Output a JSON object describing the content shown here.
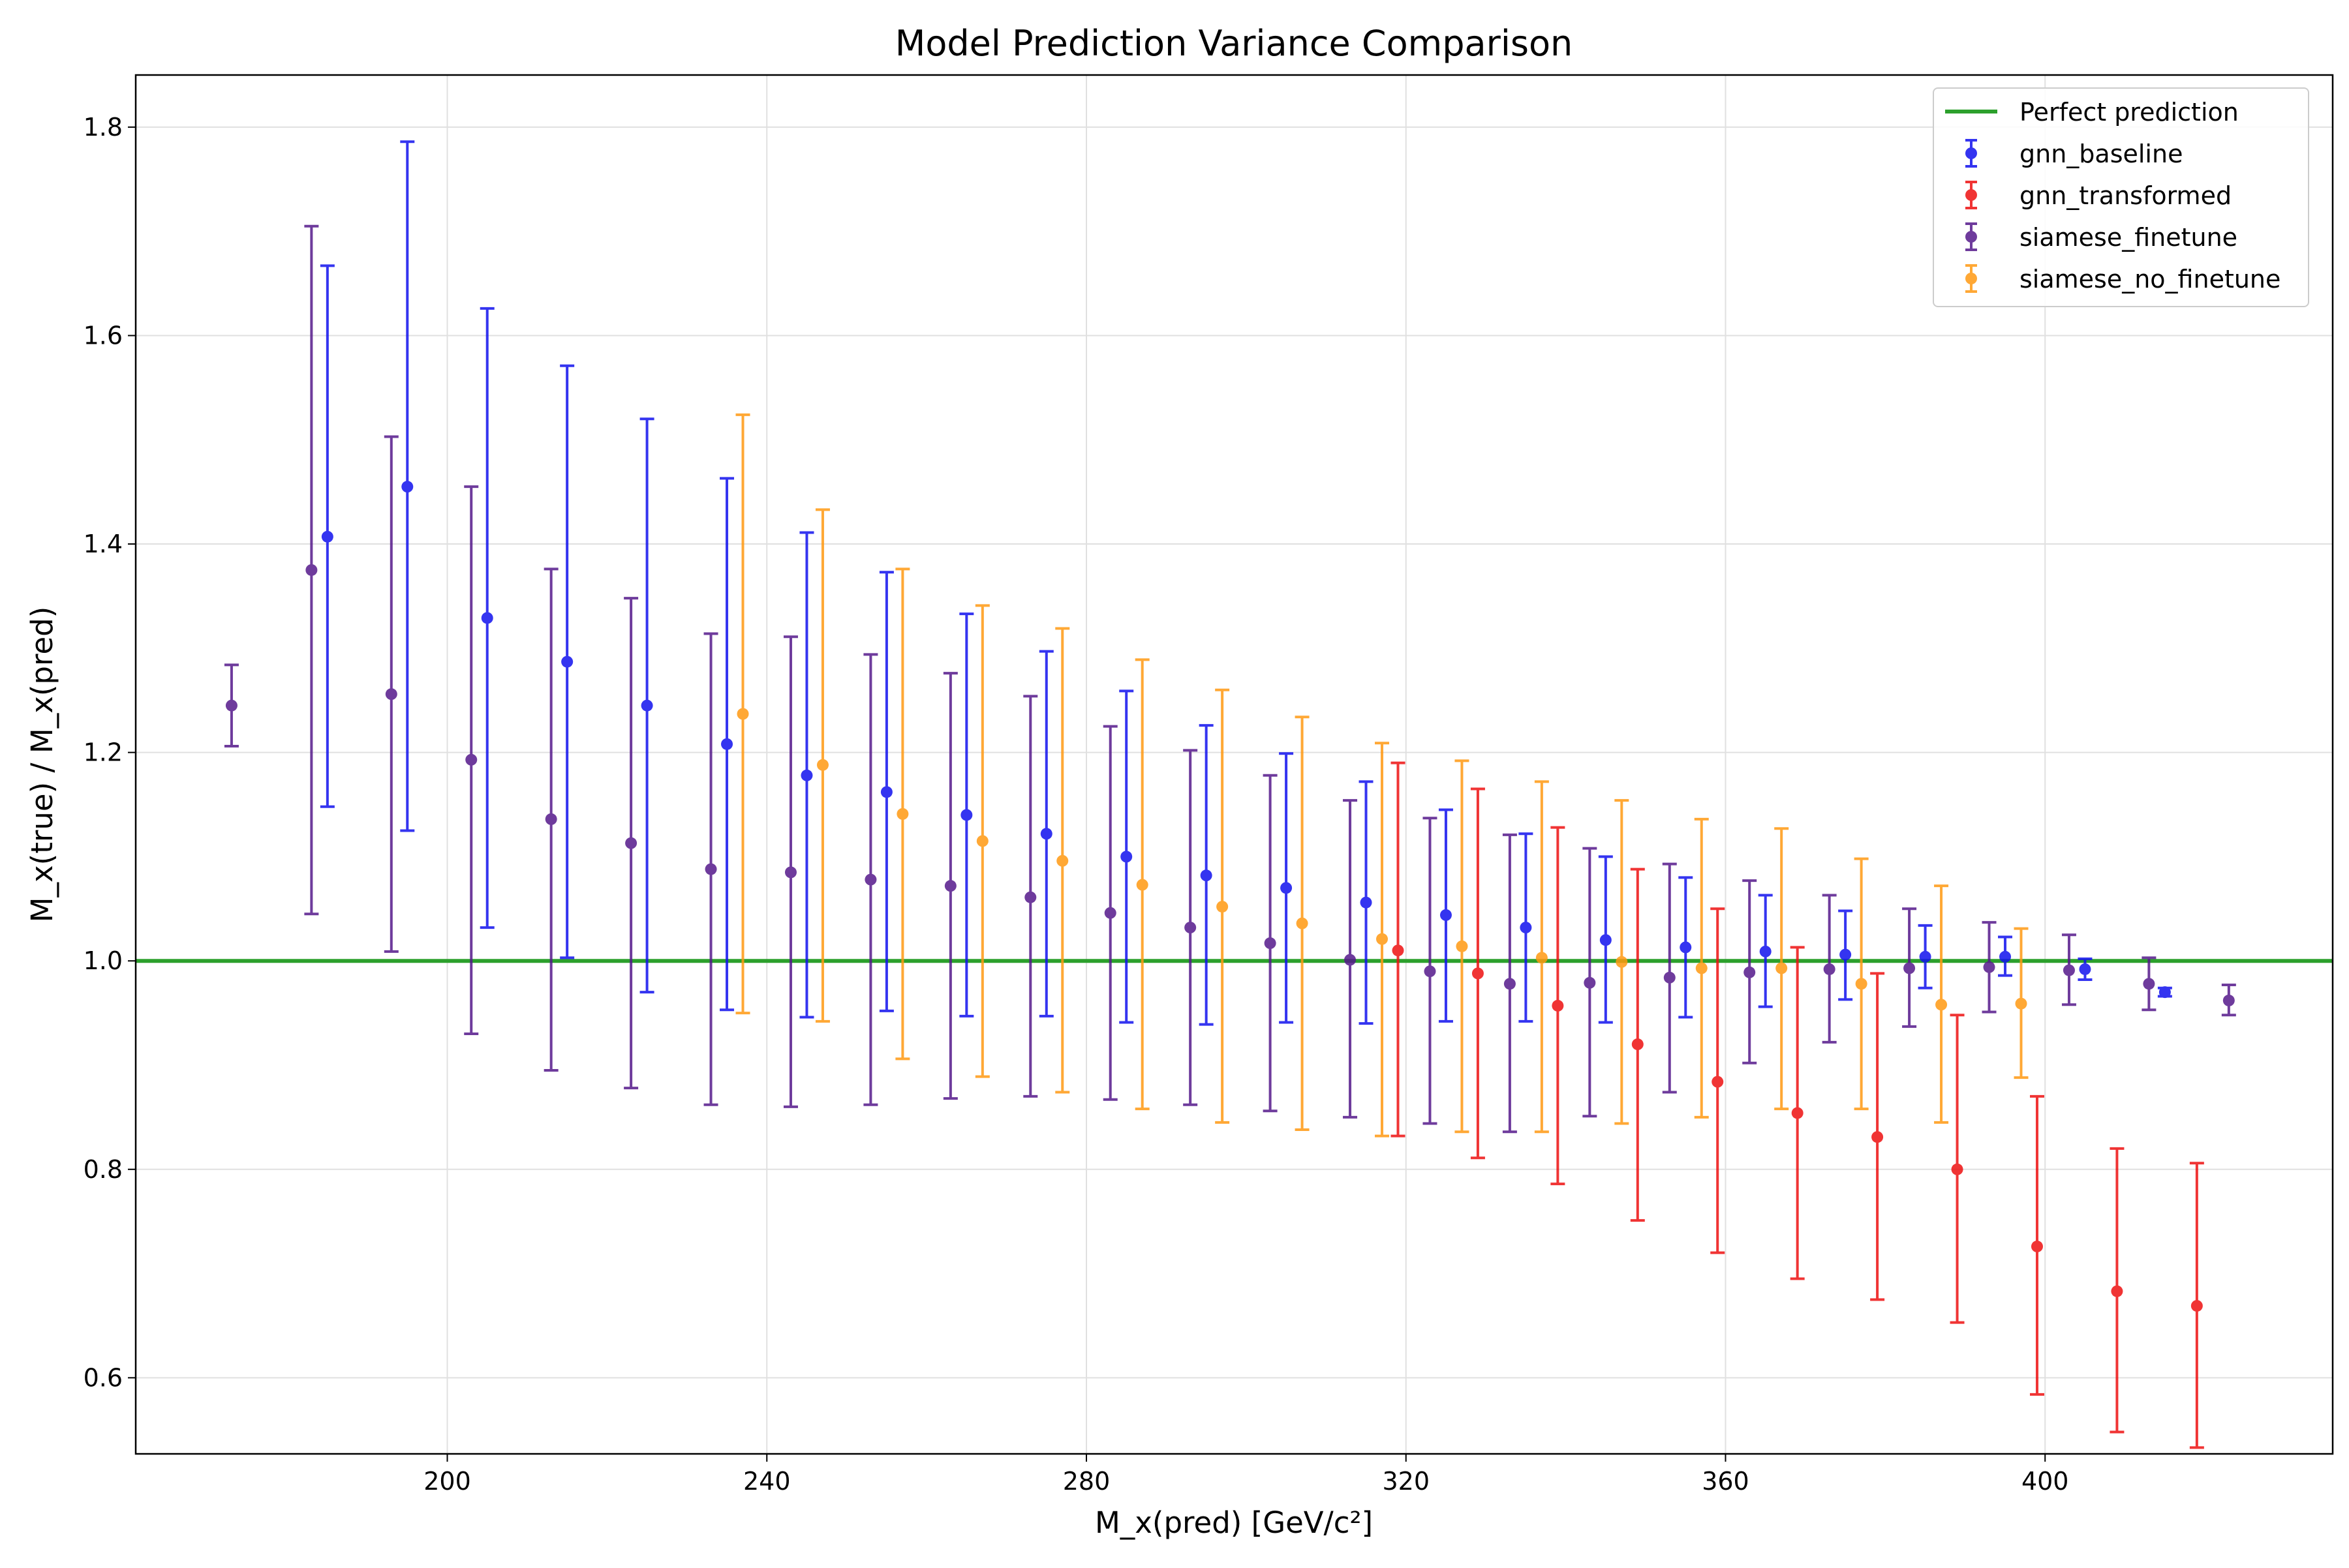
{
  "chart_data": {
    "type": "scatter",
    "title": "Model Prediction Variance Comparison",
    "xlabel": "M_x(pred) [GeV/c²]",
    "ylabel": "M_x(true) / M_x(pred)",
    "xlim": [
      161,
      436
    ],
    "ylim": [
      0.527,
      1.85
    ],
    "x_ticks": [
      200,
      240,
      280,
      320,
      360,
      400
    ],
    "y_ticks": [
      0.6,
      0.8,
      1.0,
      1.2,
      1.4,
      1.6,
      1.8
    ],
    "x_tick_labels": [
      "200",
      "240",
      "280",
      "320",
      "360",
      "400"
    ],
    "y_tick_labels": [
      "0.6",
      "0.8",
      "1.0",
      "1.2",
      "1.4",
      "1.6",
      "1.8"
    ],
    "grid": true,
    "legend_position": "top-right",
    "reference_line": {
      "name": "Perfect prediction",
      "y": 1.0,
      "color": "#2ca02c"
    },
    "series": [
      {
        "name": "gnn_baseline",
        "color": "#1111ee",
        "points": [
          {
            "x": 185,
            "y": 1.407,
            "lo": 1.148,
            "hi": 1.667
          },
          {
            "x": 195,
            "y": 1.455,
            "lo": 1.125,
            "hi": 1.786
          },
          {
            "x": 205,
            "y": 1.329,
            "lo": 1.032,
            "hi": 1.626
          },
          {
            "x": 215,
            "y": 1.287,
            "lo": 1.003,
            "hi": 1.571
          },
          {
            "x": 225,
            "y": 1.245,
            "lo": 0.97,
            "hi": 1.52
          },
          {
            "x": 235,
            "y": 1.208,
            "lo": 0.953,
            "hi": 1.463
          },
          {
            "x": 245,
            "y": 1.178,
            "lo": 0.946,
            "hi": 1.411
          },
          {
            "x": 255,
            "y": 1.162,
            "lo": 0.952,
            "hi": 1.373
          },
          {
            "x": 265,
            "y": 1.14,
            "lo": 0.947,
            "hi": 1.333
          },
          {
            "x": 275,
            "y": 1.122,
            "lo": 0.947,
            "hi": 1.297
          },
          {
            "x": 285,
            "y": 1.1,
            "lo": 0.941,
            "hi": 1.259
          },
          {
            "x": 295,
            "y": 1.082,
            "lo": 0.939,
            "hi": 1.226
          },
          {
            "x": 305,
            "y": 1.07,
            "lo": 0.941,
            "hi": 1.199
          },
          {
            "x": 315,
            "y": 1.056,
            "lo": 0.94,
            "hi": 1.172
          },
          {
            "x": 325,
            "y": 1.044,
            "lo": 0.942,
            "hi": 1.145
          },
          {
            "x": 335,
            "y": 1.032,
            "lo": 0.942,
            "hi": 1.122
          },
          {
            "x": 345,
            "y": 1.02,
            "lo": 0.941,
            "hi": 1.1
          },
          {
            "x": 355,
            "y": 1.013,
            "lo": 0.946,
            "hi": 1.08
          },
          {
            "x": 365,
            "y": 1.009,
            "lo": 0.956,
            "hi": 1.063
          },
          {
            "x": 375,
            "y": 1.006,
            "lo": 0.963,
            "hi": 1.048
          },
          {
            "x": 385,
            "y": 1.004,
            "lo": 0.974,
            "hi": 1.034
          },
          {
            "x": 395,
            "y": 1.004,
            "lo": 0.986,
            "hi": 1.023
          },
          {
            "x": 405,
            "y": 0.992,
            "lo": 0.982,
            "hi": 1.002
          },
          {
            "x": 415,
            "y": 0.97,
            "lo": 0.966,
            "hi": 0.974
          }
        ]
      },
      {
        "name": "gnn_transformed",
        "color": "#ee1111",
        "points": [
          {
            "x": 319,
            "y": 1.01,
            "lo": 0.832,
            "hi": 1.19
          },
          {
            "x": 329,
            "y": 0.988,
            "lo": 0.811,
            "hi": 1.165
          },
          {
            "x": 339,
            "y": 0.957,
            "lo": 0.786,
            "hi": 1.128
          },
          {
            "x": 349,
            "y": 0.92,
            "lo": 0.751,
            "hi": 1.088
          },
          {
            "x": 359,
            "y": 0.884,
            "lo": 0.72,
            "hi": 1.05
          },
          {
            "x": 369,
            "y": 0.854,
            "lo": 0.695,
            "hi": 1.013
          },
          {
            "x": 379,
            "y": 0.831,
            "lo": 0.675,
            "hi": 0.988
          },
          {
            "x": 389,
            "y": 0.8,
            "lo": 0.653,
            "hi": 0.948
          },
          {
            "x": 399,
            "y": 0.726,
            "lo": 0.584,
            "hi": 0.87
          },
          {
            "x": 409,
            "y": 0.683,
            "lo": 0.548,
            "hi": 0.82
          },
          {
            "x": 419,
            "y": 0.669,
            "lo": 0.533,
            "hi": 0.806
          }
        ]
      },
      {
        "name": "siamese_finetune",
        "color": "#551a8b",
        "points": [
          {
            "x": 173,
            "y": 1.245,
            "lo": 1.206,
            "hi": 1.284
          },
          {
            "x": 183,
            "y": 1.375,
            "lo": 1.045,
            "hi": 1.705
          },
          {
            "x": 193,
            "y": 1.256,
            "lo": 1.009,
            "hi": 1.503
          },
          {
            "x": 203,
            "y": 1.193,
            "lo": 0.93,
            "hi": 1.455
          },
          {
            "x": 213,
            "y": 1.136,
            "lo": 0.895,
            "hi": 1.376
          },
          {
            "x": 223,
            "y": 1.113,
            "lo": 0.878,
            "hi": 1.348
          },
          {
            "x": 233,
            "y": 1.088,
            "lo": 0.862,
            "hi": 1.314
          },
          {
            "x": 243,
            "y": 1.085,
            "lo": 0.86,
            "hi": 1.311
          },
          {
            "x": 253,
            "y": 1.078,
            "lo": 0.862,
            "hi": 1.294
          },
          {
            "x": 263,
            "y": 1.072,
            "lo": 0.868,
            "hi": 1.276
          },
          {
            "x": 273,
            "y": 1.061,
            "lo": 0.87,
            "hi": 1.254
          },
          {
            "x": 283,
            "y": 1.046,
            "lo": 0.867,
            "hi": 1.225
          },
          {
            "x": 293,
            "y": 1.032,
            "lo": 0.862,
            "hi": 1.202
          },
          {
            "x": 303,
            "y": 1.017,
            "lo": 0.856,
            "hi": 1.178
          },
          {
            "x": 313,
            "y": 1.001,
            "lo": 0.85,
            "hi": 1.154
          },
          {
            "x": 323,
            "y": 0.99,
            "lo": 0.844,
            "hi": 1.137
          },
          {
            "x": 333,
            "y": 0.978,
            "lo": 0.836,
            "hi": 1.121
          },
          {
            "x": 343,
            "y": 0.979,
            "lo": 0.851,
            "hi": 1.108
          },
          {
            "x": 353,
            "y": 0.984,
            "lo": 0.874,
            "hi": 1.093
          },
          {
            "x": 363,
            "y": 0.989,
            "lo": 0.902,
            "hi": 1.077
          },
          {
            "x": 373,
            "y": 0.992,
            "lo": 0.922,
            "hi": 1.063
          },
          {
            "x": 383,
            "y": 0.993,
            "lo": 0.937,
            "hi": 1.05
          },
          {
            "x": 393,
            "y": 0.994,
            "lo": 0.951,
            "hi": 1.037
          },
          {
            "x": 403,
            "y": 0.991,
            "lo": 0.958,
            "hi": 1.025
          },
          {
            "x": 413,
            "y": 0.978,
            "lo": 0.953,
            "hi": 1.003
          },
          {
            "x": 423,
            "y": 0.962,
            "lo": 0.948,
            "hi": 0.977
          }
        ]
      },
      {
        "name": "siamese_no_finetune",
        "color": "#ff9912",
        "points": [
          {
            "x": 237,
            "y": 1.237,
            "lo": 0.95,
            "hi": 1.524
          },
          {
            "x": 247,
            "y": 1.188,
            "lo": 0.942,
            "hi": 1.433
          },
          {
            "x": 257,
            "y": 1.141,
            "lo": 0.906,
            "hi": 1.376
          },
          {
            "x": 267,
            "y": 1.115,
            "lo": 0.889,
            "hi": 1.341
          },
          {
            "x": 277,
            "y": 1.096,
            "lo": 0.874,
            "hi": 1.319
          },
          {
            "x": 287,
            "y": 1.073,
            "lo": 0.858,
            "hi": 1.289
          },
          {
            "x": 297,
            "y": 1.052,
            "lo": 0.845,
            "hi": 1.26
          },
          {
            "x": 307,
            "y": 1.036,
            "lo": 0.838,
            "hi": 1.234
          },
          {
            "x": 317,
            "y": 1.021,
            "lo": 0.832,
            "hi": 1.209
          },
          {
            "x": 327,
            "y": 1.014,
            "lo": 0.836,
            "hi": 1.192
          },
          {
            "x": 337,
            "y": 1.003,
            "lo": 0.836,
            "hi": 1.172
          },
          {
            "x": 347,
            "y": 0.999,
            "lo": 0.844,
            "hi": 1.154
          },
          {
            "x": 357,
            "y": 0.993,
            "lo": 0.85,
            "hi": 1.136
          },
          {
            "x": 367,
            "y": 0.993,
            "lo": 0.858,
            "hi": 1.127
          },
          {
            "x": 377,
            "y": 0.978,
            "lo": 0.858,
            "hi": 1.098
          },
          {
            "x": 387,
            "y": 0.958,
            "lo": 0.845,
            "hi": 1.072
          },
          {
            "x": 397,
            "y": 0.959,
            "lo": 0.888,
            "hi": 1.031
          }
        ]
      }
    ]
  }
}
